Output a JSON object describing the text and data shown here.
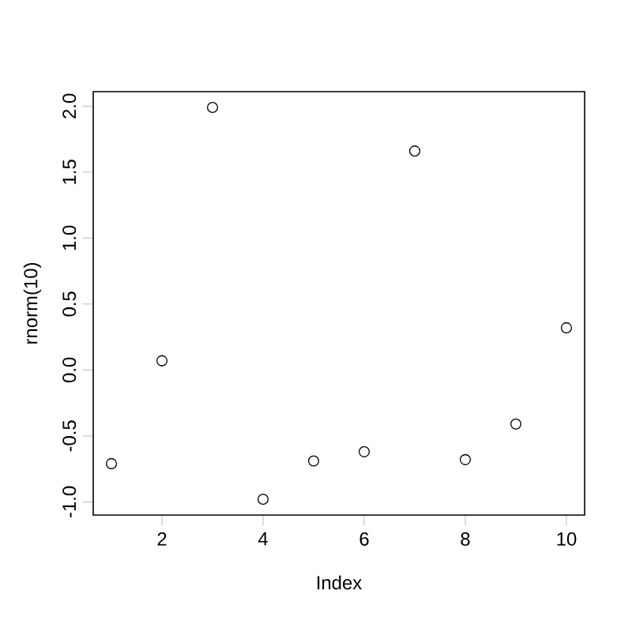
{
  "chart_data": {
    "type": "scatter",
    "xlabel": "Index",
    "ylabel": "rnorm(10)",
    "x": [
      1,
      2,
      3,
      4,
      5,
      6,
      7,
      8,
      9,
      10
    ],
    "values": [
      -0.71,
      0.07,
      1.99,
      -0.98,
      -0.69,
      -0.62,
      1.66,
      -0.68,
      -0.41,
      0.32
    ],
    "color": "#000000",
    "marker": "circle",
    "xlim": [
      0.64,
      10.36
    ],
    "ylim": [
      -1.1,
      2.11
    ],
    "xticks": [
      2,
      4,
      6,
      8,
      10
    ],
    "yticks": [
      {
        "value": -1,
        "label": "-1.0"
      },
      {
        "value": -0.5,
        "label": "-0.5"
      },
      {
        "value": 0,
        "label": "0.0"
      },
      {
        "value": 0.5,
        "label": "0.5"
      },
      {
        "value": 1,
        "label": "1.0"
      },
      {
        "value": 1.5,
        "label": "1.5"
      },
      {
        "value": 2,
        "label": "2.0"
      }
    ],
    "grid": false
  }
}
